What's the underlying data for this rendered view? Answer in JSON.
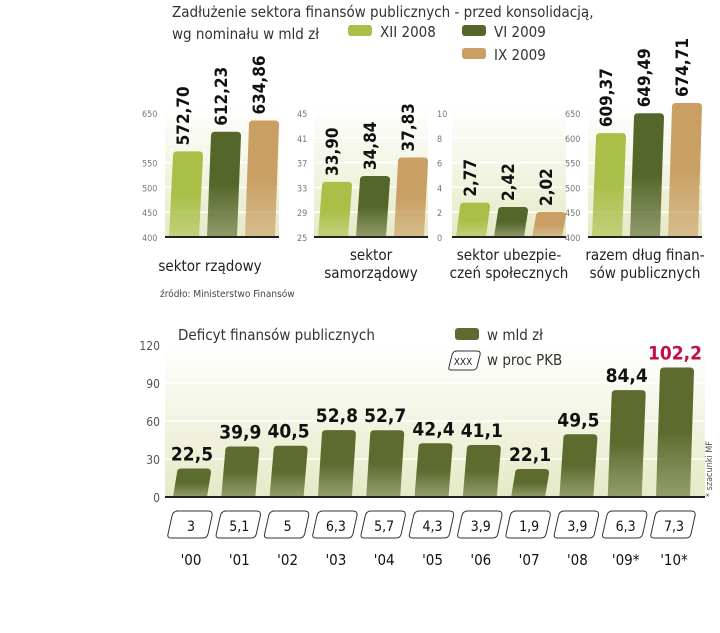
{
  "colors": {
    "xii2008": "#a9bf48",
    "vi2009": "#55662a",
    "ix2009": "#c99f63",
    "deficit": "#5d6b2e",
    "highlight": "#c0104a",
    "text": "#222222",
    "axis": "#777777"
  },
  "chart_data": [
    {
      "type": "bar",
      "title": "Zadłużenie sektora finansów publicznych - przed konsolidacją,",
      "subtitle": "wg nominału w mld zł",
      "series_names": [
        "XII 2008",
        "VI 2009",
        "IX 2009"
      ],
      "source": "źródło: Ministerstwo Finansów",
      "panels": [
        {
          "label": [
            "sektor rządowy"
          ],
          "ylim": [
            400,
            650
          ],
          "yticks": [
            "400",
            "450",
            "500",
            "550",
            "650"
          ],
          "ytick_values": [
            400,
            450,
            500,
            550,
            650
          ],
          "values": [
            572.7,
            612.23,
            634.86
          ],
          "value_labels": [
            "572,70",
            "612,23",
            "634,86"
          ]
        },
        {
          "label": [
            "sektor",
            "samorządowy"
          ],
          "ylim": [
            25,
            45
          ],
          "yticks": [
            "25",
            "29",
            "33",
            "37",
            "41",
            "45"
          ],
          "ytick_values": [
            25,
            29,
            33,
            37,
            41,
            45
          ],
          "values": [
            33.9,
            34.84,
            37.83
          ],
          "value_labels": [
            "33,90",
            "34,84",
            "37,83"
          ]
        },
        {
          "label": [
            "sektor ubezpie-",
            "czeń społecznych"
          ],
          "ylim": [
            0,
            10
          ],
          "yticks": [
            "0",
            "2",
            "4",
            "6",
            "8",
            "10"
          ],
          "ytick_values": [
            0,
            2,
            4,
            6,
            8,
            10
          ],
          "values": [
            2.77,
            2.42,
            2.02
          ],
          "value_labels": [
            "2,77",
            "2,42",
            "2,02"
          ]
        },
        {
          "label": [
            "razem dług finan-",
            "sów publicznych"
          ],
          "ylim": [
            400,
            650
          ],
          "yticks": [
            "400",
            "450",
            "500",
            "550",
            "600",
            "650"
          ],
          "ytick_values": [
            400,
            450,
            500,
            550,
            600,
            650
          ],
          "values": [
            609.37,
            649.49,
            674.71
          ],
          "value_labels": [
            "609,37",
            "649,49",
            "674,71"
          ]
        }
      ]
    },
    {
      "type": "bar",
      "title": "Deficyt finansów publicznych",
      "legend": {
        "bars": "w mld zł",
        "box_sample": "XXX",
        "boxes": "w proc PKB"
      },
      "note": "* szacunki MF",
      "ylim": [
        0,
        120
      ],
      "yticks": [
        "0",
        "30",
        "60",
        "90",
        "120"
      ],
      "ytick_values": [
        0,
        30,
        60,
        90,
        120
      ],
      "categories": [
        "'00",
        "'01",
        "'02",
        "'03",
        "'04",
        "'05",
        "'06",
        "'07",
        "'08",
        "'09*",
        "'10*"
      ],
      "values": [
        22.5,
        39.9,
        40.5,
        52.8,
        52.7,
        42.4,
        41.1,
        22.1,
        49.5,
        84.4,
        102.2
      ],
      "value_labels": [
        "22,5",
        "39,9",
        "40,5",
        "52,8",
        "52,7",
        "42,4",
        "41,1",
        "22,1",
        "49,5",
        "84,4",
        "102,2"
      ],
      "pkb_percent": [
        "3",
        "5,1",
        "5",
        "6,3",
        "5,7",
        "4,3",
        "3,9",
        "1,9",
        "3,9",
        "6,3",
        "7,3"
      ]
    }
  ]
}
